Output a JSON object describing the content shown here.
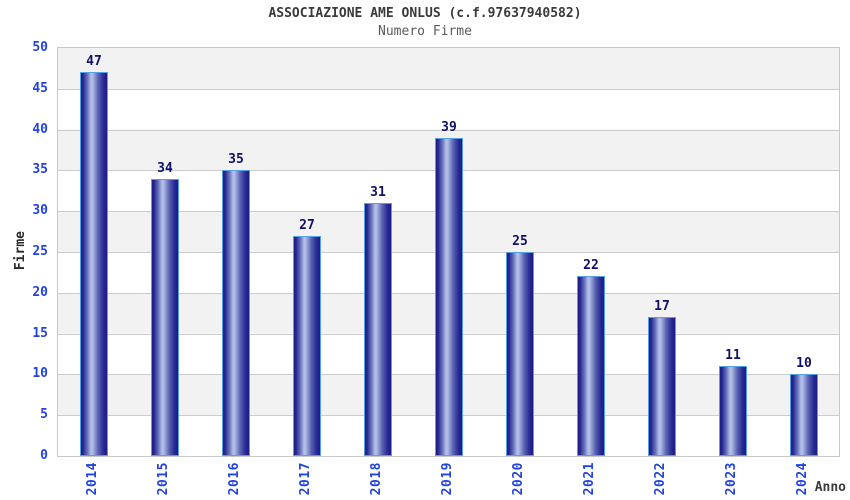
{
  "chart_data": {
    "type": "bar",
    "title": "ASSOCIAZIONE AME ONLUS (c.f.97637940582)",
    "subtitle": "Numero Firme",
    "xlabel": "Anno",
    "ylabel": "Firme",
    "categories": [
      "2014",
      "2015",
      "2016",
      "2017",
      "2018",
      "2019",
      "2020",
      "2021",
      "2022",
      "2023",
      "2024"
    ],
    "values": [
      47,
      34,
      35,
      27,
      31,
      39,
      25,
      22,
      17,
      11,
      10
    ],
    "ylim": [
      0,
      50
    ],
    "yticks": [
      0,
      5,
      10,
      15,
      20,
      25,
      30,
      35,
      40,
      45,
      50
    ],
    "grid": "horizontal-bands",
    "legend": "none",
    "colors": {
      "bar_dark": "#1b1b85",
      "bar_light": "#b8c2e8",
      "bar_border": "#55a0e6",
      "tick_label": "#2243dd",
      "value_label": "#10106a",
      "band_gray": "#f2f2f2",
      "gridline": "#cccccc",
      "plot_border": "#c8c8c8",
      "title": "#3a3a3a",
      "subtitle": "#5a5a5a"
    }
  }
}
